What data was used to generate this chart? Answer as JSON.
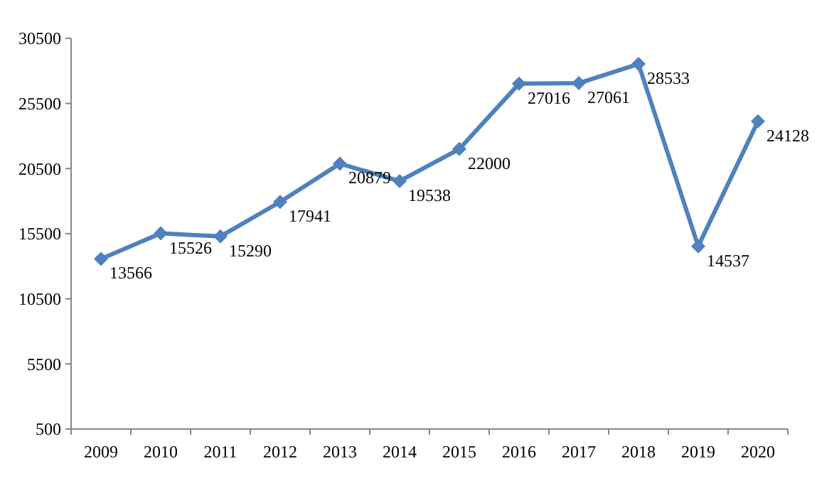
{
  "chart_data": {
    "type": "line",
    "categories": [
      "2009",
      "2010",
      "2011",
      "2012",
      "2013",
      "2014",
      "2015",
      "2016",
      "2017",
      "2018",
      "2019",
      "2020"
    ],
    "series": [
      {
        "color": "#4f81bd",
        "values": [
          13566,
          15526,
          15290,
          17941,
          20879,
          19538,
          22000,
          27016,
          27061,
          28533,
          14537,
          24128
        ]
      }
    ],
    "ylim": [
      500,
      30500
    ],
    "yticks": [
      500,
      5500,
      10500,
      15500,
      20500,
      25500,
      30500
    ],
    "grid": false,
    "marker": "diamond",
    "line_style": "solid",
    "data_labels": true
  }
}
